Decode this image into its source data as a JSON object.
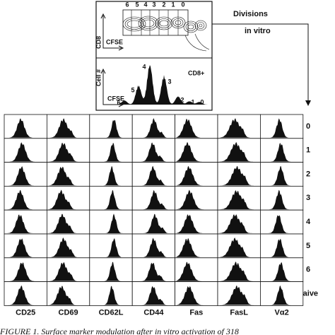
{
  "top_panel": {
    "division_labels": [
      "6",
      "5",
      "4",
      "3",
      "2",
      "1",
      "0"
    ],
    "dot_plot": {
      "y_label": "CD8",
      "x_label": "CFSE"
    },
    "histogram": {
      "y_label": "Cell #",
      "x_label": "CFSE",
      "gate_label": "CD8+",
      "peak_labels": [
        "6",
        "5",
        "4",
        "3",
        "2",
        "1",
        "0"
      ]
    }
  },
  "annotation": {
    "line1": "Divisions",
    "line2": "in vitro"
  },
  "grid": {
    "rows": [
      "0",
      "1",
      "2",
      "3",
      "4",
      "5",
      "6",
      "naive"
    ],
    "columns": [
      "CD25",
      "CD69",
      "CD62L",
      "CD44",
      "Fas",
      "FasL",
      "Vα2"
    ]
  },
  "caption": "FIGURE 1.   Surface marker modulation after in vitro activation of 318"
}
